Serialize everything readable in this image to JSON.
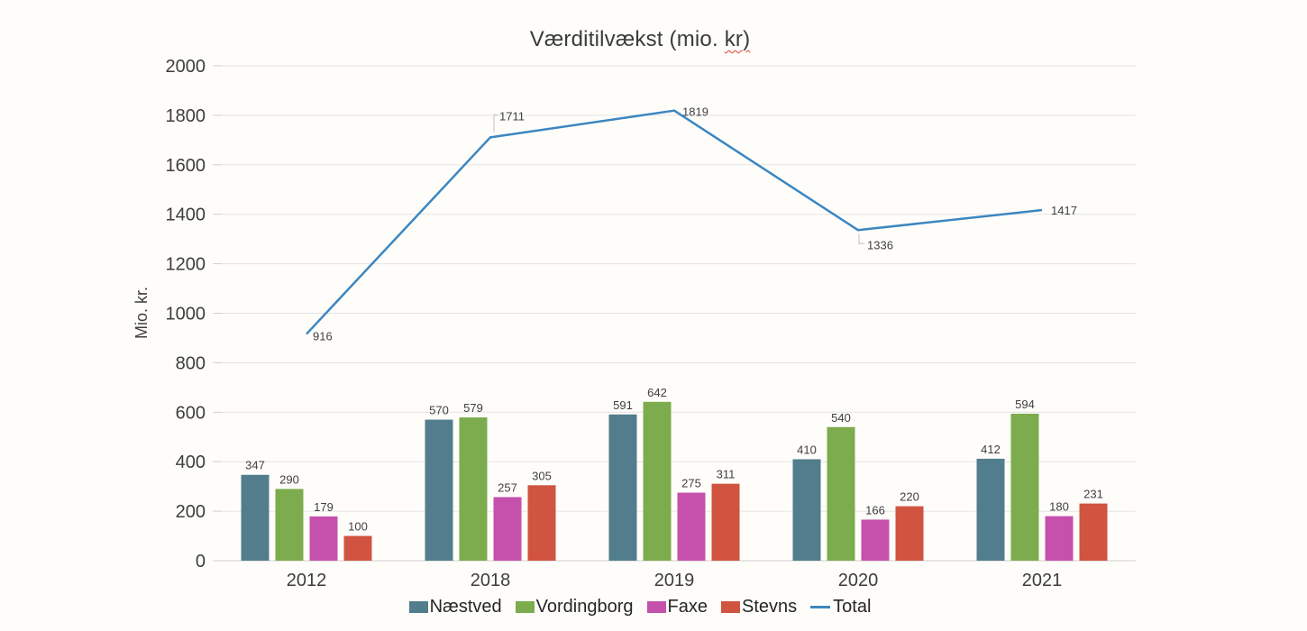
{
  "title": {
    "part1": "Værditilvækst (mio. ",
    "part2": "kr)"
  },
  "chart_data": {
    "type": "bar+line",
    "title": "Værditilvækst (mio. kr)",
    "categories": [
      "2012",
      "2018",
      "2019",
      "2020",
      "2021"
    ],
    "series": [
      {
        "name": "Næstved",
        "type": "bar",
        "color": "#527D8C",
        "values": [
          347,
          570,
          591,
          410,
          412
        ]
      },
      {
        "name": "Vordingborg",
        "type": "bar",
        "color": "#7CAC4D",
        "values": [
          290,
          579,
          642,
          540,
          594
        ]
      },
      {
        "name": "Faxe",
        "type": "bar",
        "color": "#C551AC",
        "values": [
          179,
          257,
          275,
          166,
          180
        ]
      },
      {
        "name": "Stevns",
        "type": "bar",
        "color": "#D05440",
        "values": [
          100,
          305,
          311,
          220,
          231
        ]
      },
      {
        "name": "Total",
        "type": "line",
        "color": "#3C86C1",
        "values": [
          916,
          1711,
          1819,
          1336,
          1417
        ]
      }
    ],
    "xlabel": "",
    "ylabel": "Mio. kr.",
    "ylim": [
      0,
      2000
    ],
    "yticks": [
      0,
      200,
      400,
      600,
      800,
      1000,
      1200,
      1400,
      1600,
      1800,
      2000
    ],
    "grid": true,
    "legend_position": "bottom",
    "legend_labels": [
      "Næstved",
      "Vordingborg",
      "Faxe",
      "Stevns",
      "Total"
    ]
  },
  "colors": {
    "background": "#FFFDFA",
    "gridline": "#E3E3E3",
    "baseline": "#CFCFCF",
    "axis_text": "#3D3D3D",
    "data_label": "#404040",
    "legend_text": "#262626",
    "spellcheck_underline": "#E0402F",
    "leader_line": "#BFBFBF"
  }
}
